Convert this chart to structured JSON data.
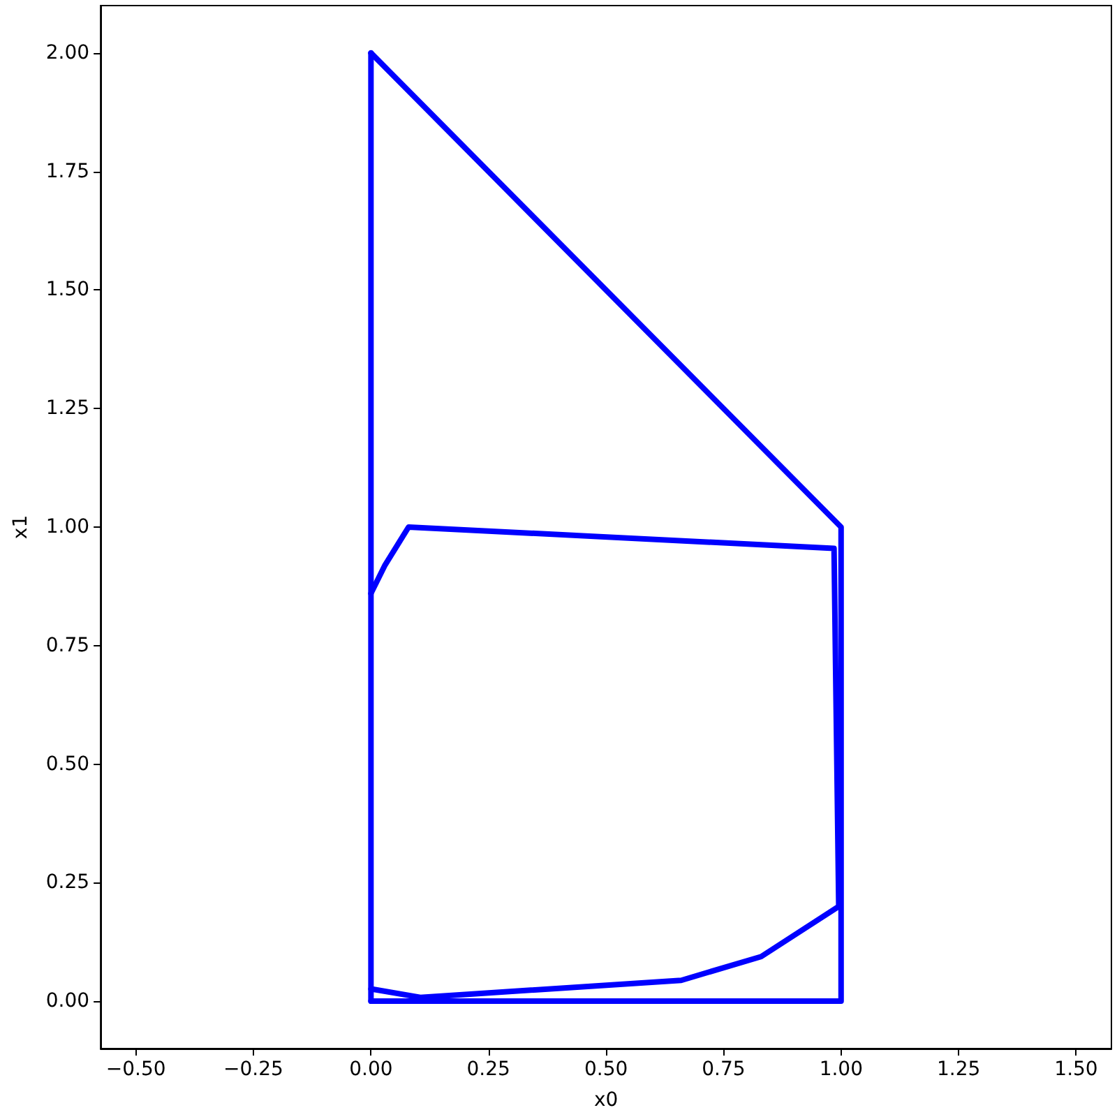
{
  "chart_data": {
    "type": "line",
    "xlabel": "x0",
    "ylabel": "x1",
    "xlim": [
      -0.575,
      1.575
    ],
    "ylim": [
      -0.1,
      2.1
    ],
    "xticks": [
      {
        "value": -0.5,
        "label": "−0.50"
      },
      {
        "value": -0.25,
        "label": "−0.25"
      },
      {
        "value": 0,
        "label": "0.00"
      },
      {
        "value": 0.25,
        "label": "0.25"
      },
      {
        "value": 0.5,
        "label": "0.50"
      },
      {
        "value": 0.75,
        "label": "0.75"
      },
      {
        "value": 1,
        "label": "1.00"
      },
      {
        "value": 1.25,
        "label": "1.25"
      },
      {
        "value": 1.5,
        "label": "1.50"
      }
    ],
    "yticks": [
      {
        "value": 0,
        "label": "0.00"
      },
      {
        "value": 0.25,
        "label": "0.25"
      },
      {
        "value": 0.5,
        "label": "0.50"
      },
      {
        "value": 0.75,
        "label": "0.75"
      },
      {
        "value": 1,
        "label": "1.00"
      },
      {
        "value": 1.25,
        "label": "1.25"
      },
      {
        "value": 1.5,
        "label": "1.50"
      },
      {
        "value": 1.75,
        "label": "1.75"
      },
      {
        "value": 2,
        "label": "2.00"
      }
    ],
    "grid": false,
    "marker": "none",
    "line_style": "solid",
    "series": [
      {
        "color": "#0000ff",
        "x": [
          0,
          1,
          1,
          0
        ],
        "values": [
          0,
          0,
          1,
          2
        ]
      },
      {
        "color": "#0000ff",
        "x": [
          0,
          0
        ],
        "values": [
          2,
          0
        ]
      },
      {
        "color": "#0000ff",
        "x": [
          0,
          0.03,
          0.08,
          0.985,
          0.995,
          0.83,
          0.66,
          0.105,
          0
        ],
        "values": [
          0.86,
          0.92,
          1.0,
          0.955,
          0.2,
          0.094,
          0.044,
          0.008,
          0.026
        ]
      }
    ]
  }
}
